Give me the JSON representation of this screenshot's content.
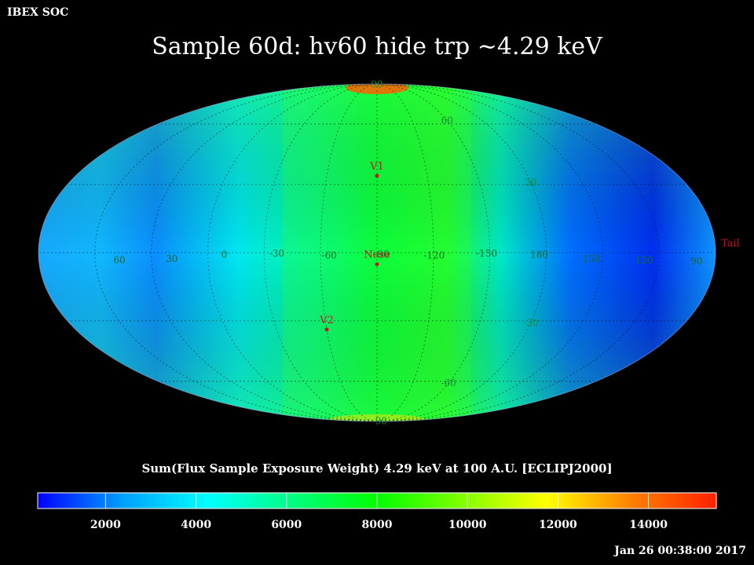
{
  "header": {
    "org_label": "IBEX SOC",
    "title": "Sample 60d: hv60 hide trp ~4.29 keV"
  },
  "map": {
    "projection": "Mollweide (ecliptic)",
    "graticule_lat_labels": [
      "90",
      "60",
      "30",
      "-30",
      "-60",
      "-90"
    ],
    "graticule_lon_labels": [
      "60",
      "30",
      "0",
      "-30",
      "-60",
      "-90",
      "-120",
      "-150",
      "180",
      "150",
      "120",
      "90"
    ],
    "markers": [
      {
        "label": "V1",
        "lon": -90,
        "lat": 34
      },
      {
        "label": "Nose",
        "lon": -90,
        "lat": -5
      },
      {
        "label": "V2",
        "lon": -60,
        "lat": -34
      },
      {
        "label": "Tail",
        "lon": 90,
        "lat": 0
      }
    ],
    "marker_color": "#c8141e"
  },
  "colorbar": {
    "title": "Sum(Flux Sample Exposure Weight)  4.29 keV at 100 A.U. [ECLIPJ2000]",
    "range": [
      500,
      15500
    ],
    "tick_labels": [
      "2000",
      "4000",
      "6000",
      "8000",
      "10000",
      "12000",
      "14000"
    ],
    "stops": [
      "#0000ff",
      "#00a0ff",
      "#00ffff",
      "#00ff80",
      "#00ff00",
      "#80ff00",
      "#ffff00",
      "#ff8000",
      "#ff2000"
    ]
  },
  "footer": {
    "timestamp": "Jan 26 00:38:00 2017"
  }
}
